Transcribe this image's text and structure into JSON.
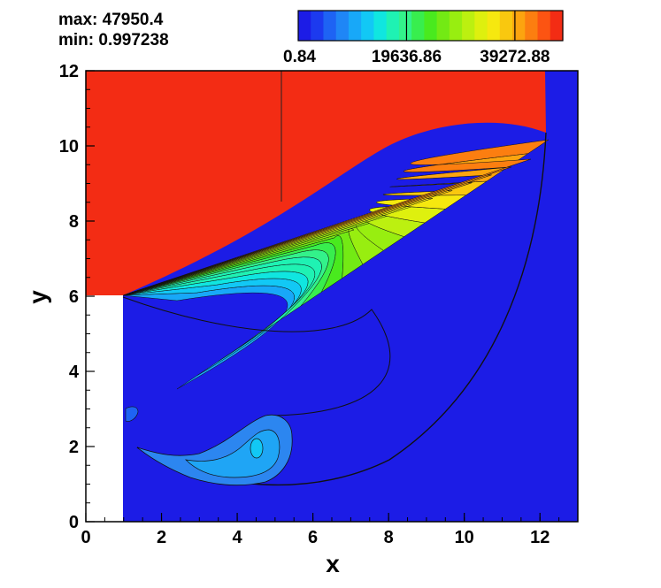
{
  "stats": {
    "max_text": "max: 47950.4",
    "min_text": "min: 0.997238"
  },
  "colorbar": {
    "labels": [
      "0.84",
      "19636.86",
      "39272.88"
    ],
    "colors": [
      "#1c1ce6",
      "#1c3aef",
      "#1e63f4",
      "#1f86f6",
      "#18a8f8",
      "#12c8f5",
      "#10e6e0",
      "#1ff2b3",
      "#33f28a",
      "#38ee4e",
      "#49ea1e",
      "#73ea14",
      "#98ee10",
      "#bcf010",
      "#def00e",
      "#f6e80f",
      "#f9c80f",
      "#fca40f",
      "#fc7e10",
      "#fc5412",
      "#f32c14"
    ]
  },
  "chart_data": {
    "type": "heatmap",
    "title": "",
    "xlabel": "x",
    "ylabel": "y",
    "xlim": [
      0,
      13
    ],
    "ylim": [
      0,
      12
    ],
    "x_ticks": [
      0,
      2,
      4,
      6,
      8,
      10,
      12
    ],
    "y_ticks": [
      0,
      2,
      4,
      6,
      8,
      10,
      12
    ],
    "value_range": [
      0.997238,
      47950.4
    ],
    "colorbar_ticks": [
      0.84,
      19636.86,
      39272.88
    ],
    "grid": false,
    "legend": "colorbar top-right",
    "colors": {
      "high": "#f32c14",
      "low": "#1c1ce6"
    }
  }
}
